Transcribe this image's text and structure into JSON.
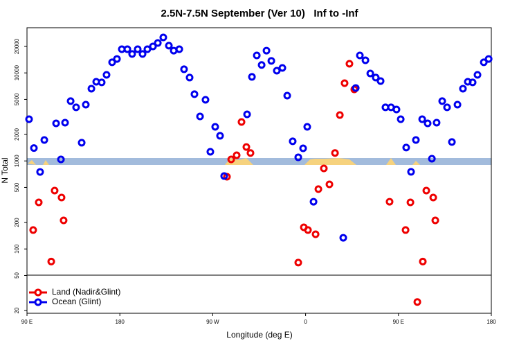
{
  "chart_data": {
    "type": "scatter",
    "title": "2.5N-7.5N September (Ver 10)   Inf to -Inf",
    "x_label": "Longitude (deg E)",
    "y_label": "N Total",
    "log_y": true,
    "legend_position": "bottom-left",
    "xlim": [
      90,
      540
    ],
    "xticks": [
      {
        "value": 90,
        "label": "90 E"
      },
      180,
      {
        "value": 270,
        "label": "90 W"
      },
      {
        "value": 360,
        "label": "0"
      },
      {
        "value": 450,
        "label": "90 E"
      },
      {
        "value": 540,
        "label": "180"
      }
    ],
    "ylim": [
      18.6,
      32600
    ],
    "yticks": [
      20,
      50,
      100,
      200,
      500,
      1000,
      2000,
      5000,
      10000,
      20000
    ],
    "series": [
      {
        "name": "Land (Nadir&Glint)",
        "color": "#ee0000",
        "x": [
          96,
          101.4,
          113.5,
          116.8,
          123.5,
          125.5,
          283.8,
          287.9,
          293.2,
          297.9,
          302.6,
          306.6,
          352.9,
          358.3,
          362.3,
          369.7,
          372.4,
          377.7,
          383.1,
          388.5,
          393.2,
          397.8,
          402.5,
          407.2,
          441.4,
          456.9,
          461.6,
          468.3,
          473.6,
          477,
          483.7,
          485.7
        ],
        "values": [
          164,
          338,
          72,
          460,
          384,
          211,
          662,
          1040,
          1160,
          2770,
          1440,
          1230,
          70,
          176,
          164,
          147,
          478,
          822,
          542,
          1230,
          3320,
          7650,
          12700,
          6500,
          344,
          164,
          338,
          25,
          72,
          460,
          384,
          211
        ]
      },
      {
        "name": "Ocean (Glint)",
        "color": "#0000ee",
        "x": [
          92,
          96.7,
          102.7,
          106.8,
          118.2,
          122.9,
          126.9,
          132.3,
          137.6,
          143,
          147,
          152.4,
          157.1,
          162.4,
          167.1,
          172.5,
          177.2,
          181.9,
          187.3,
          191.9,
          197.3,
          202,
          206.7,
          212.1,
          216.8,
          222.1,
          227.5,
          232.2,
          237.6,
          242.2,
          247.6,
          252.3,
          257.7,
          263,
          267.7,
          272.4,
          277.1,
          281.1,
          303.3,
          308,
          312.7,
          317.4,
          322.1,
          326.8,
          332.1,
          337.5,
          342.2,
          347.5,
          352.9,
          357.6,
          361.6,
          367.7,
          396.5,
          408.6,
          412.6,
          418,
          422.7,
          428,
          432.7,
          437.4,
          442.8,
          448.1,
          452.2,
          457.5,
          462.2,
          466.9,
          473,
          478.3,
          482.4,
          487,
          492.4,
          497.1,
          501.8,
          507.2,
          512.5,
          517.2,
          521.9,
          526.6,
          532.7,
          537.4
        ],
        "values": [
          2980,
          1400,
          750,
          1730,
          2670,
          1040,
          2720,
          4780,
          4060,
          1610,
          4360,
          6620,
          7930,
          7800,
          9510,
          13200,
          14400,
          18600,
          18600,
          16400,
          18600,
          16400,
          18600,
          20000,
          21900,
          25300,
          20400,
          17900,
          18600,
          11000,
          8850,
          5730,
          3200,
          4950,
          1270,
          2440,
          1930,
          674,
          3380,
          9010,
          15800,
          12300,
          17900,
          13700,
          10600,
          11400,
          5520,
          1670,
          1100,
          1390,
          2440,
          344,
          134,
          6740,
          15800,
          13900,
          9860,
          8850,
          8080,
          4060,
          4060,
          3840,
          2980,
          1420,
          752,
          1730,
          2980,
          2670,
          1060,
          2720,
          4780,
          4060,
          1640,
          4360,
          6620,
          7930,
          7800,
          9510,
          13200,
          14400
        ]
      }
    ]
  }
}
